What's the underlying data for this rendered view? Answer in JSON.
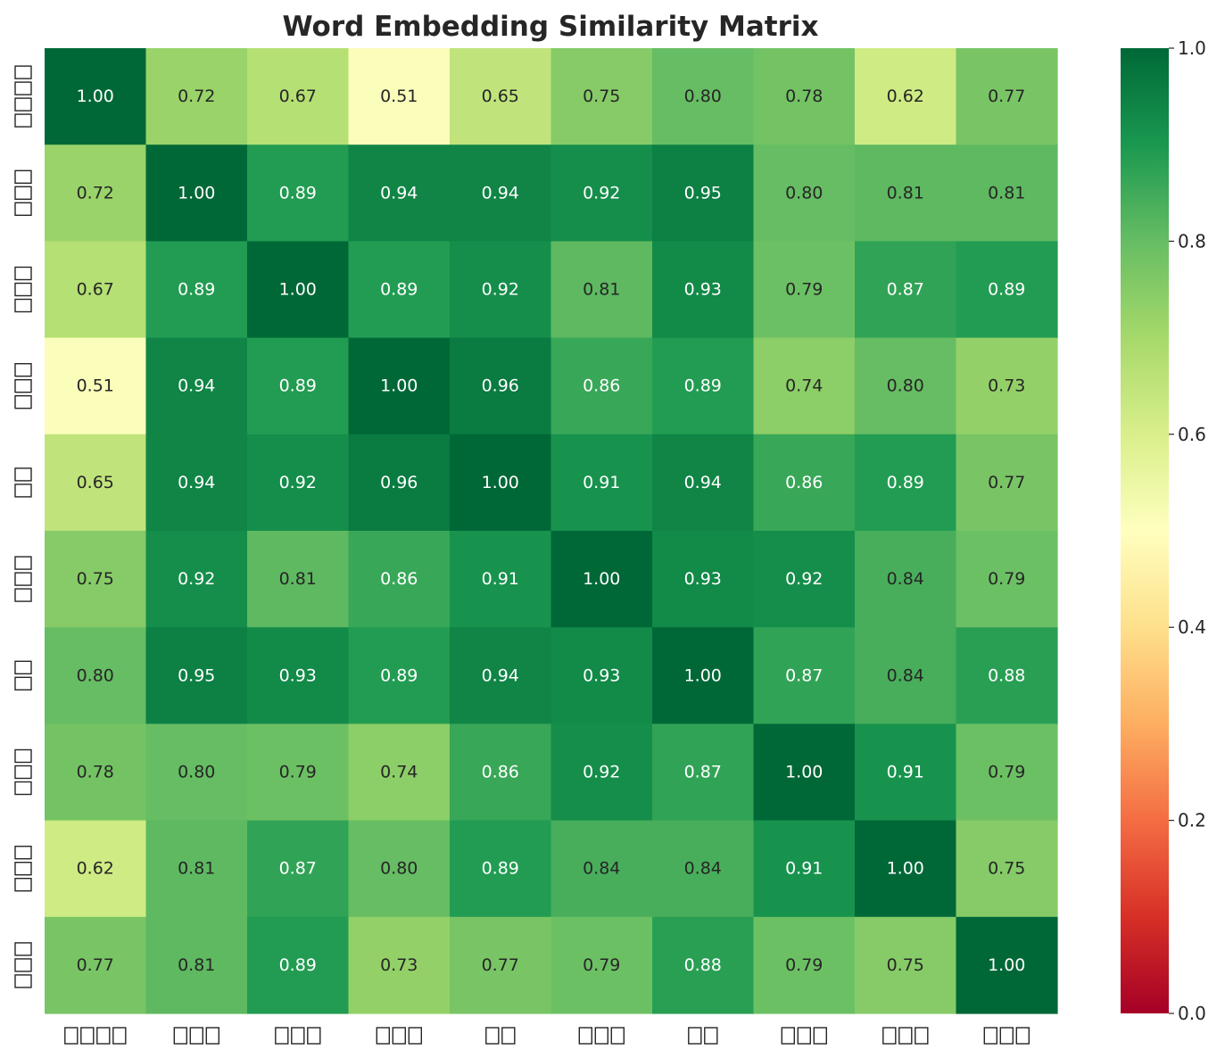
{
  "chart_data": {
    "type": "heatmap",
    "title": "Word Embedding Similarity Matrix",
    "xlabel": "",
    "ylabel": "",
    "row_labels": [
      "□□□□",
      "□□□",
      "□□□",
      "□□□",
      "□□",
      "□□□",
      "□□",
      "□□□",
      "□□□",
      "□□□"
    ],
    "col_labels": [
      "□□□□",
      "□□□",
      "□□□",
      "□□□",
      "□□",
      "□□□",
      "□□",
      "□□□",
      "□□□",
      "□□□"
    ],
    "values": [
      [
        1.0,
        0.72,
        0.67,
        0.51,
        0.65,
        0.75,
        0.8,
        0.78,
        0.62,
        0.77
      ],
      [
        0.72,
        1.0,
        0.89,
        0.94,
        0.94,
        0.92,
        0.95,
        0.8,
        0.81,
        0.81
      ],
      [
        0.67,
        0.89,
        1.0,
        0.89,
        0.92,
        0.81,
        0.93,
        0.79,
        0.87,
        0.89
      ],
      [
        0.51,
        0.94,
        0.89,
        1.0,
        0.96,
        0.86,
        0.89,
        0.74,
        0.8,
        0.73
      ],
      [
        0.65,
        0.94,
        0.92,
        0.96,
        1.0,
        0.91,
        0.94,
        0.86,
        0.89,
        0.77
      ],
      [
        0.75,
        0.92,
        0.81,
        0.86,
        0.91,
        1.0,
        0.93,
        0.92,
        0.84,
        0.79
      ],
      [
        0.8,
        0.95,
        0.93,
        0.89,
        0.94,
        0.93,
        1.0,
        0.87,
        0.84,
        0.88
      ],
      [
        0.78,
        0.8,
        0.79,
        0.74,
        0.86,
        0.92,
        0.87,
        1.0,
        0.91,
        0.79
      ],
      [
        0.62,
        0.81,
        0.87,
        0.8,
        0.89,
        0.84,
        0.84,
        0.91,
        1.0,
        0.75
      ],
      [
        0.77,
        0.81,
        0.89,
        0.73,
        0.77,
        0.79,
        0.88,
        0.79,
        0.75,
        1.0
      ]
    ],
    "value_format": "2 decimals",
    "colormap": "RdYlGn",
    "colormap_stops": [
      "#a50026",
      "#d73027",
      "#f46d43",
      "#fdae61",
      "#fee08b",
      "#ffffbf",
      "#d9ef8b",
      "#a6d96a",
      "#66bd63",
      "#1a9850",
      "#006837"
    ],
    "vmin": 0.0,
    "vmax": 1.0,
    "colorbar": {
      "position": "right",
      "ticks": [
        0.0,
        0.2,
        0.4,
        0.6,
        0.8,
        1.0
      ],
      "tick_labels": [
        "0.0",
        "0.2",
        "0.4",
        "0.6",
        "0.8",
        "1.0"
      ]
    },
    "grid": false
  }
}
